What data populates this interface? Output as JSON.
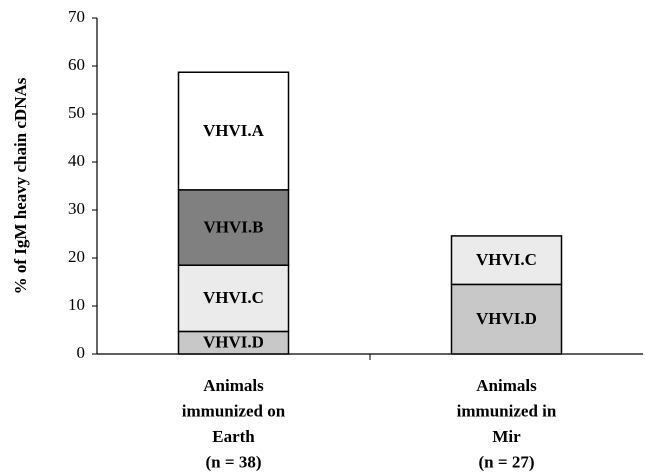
{
  "chart_data": {
    "type": "stacked_bar",
    "y_label": "% of IgM heavy chain cDNAs",
    "categories": [
      [
        "Animals",
        "immunized on",
        "Earth",
        "(n = 38)"
      ],
      [
        "Animals",
        "immunized in",
        "Mir",
        "(n = 27)"
      ]
    ],
    "series": [
      {
        "name": "VHVI.D",
        "color": "#c8c8c8",
        "values": [
          4.7,
          14.5
        ]
      },
      {
        "name": "VHVI.C",
        "color": "#ebebeb",
        "values": [
          13.8,
          10.1
        ]
      },
      {
        "name": "VHVI.B",
        "color": "#808080",
        "values": [
          15.7,
          null
        ]
      },
      {
        "name": "VHVI.A",
        "color": "#ffffff",
        "values": [
          24.5,
          null
        ]
      }
    ],
    "ylim": [
      0,
      70
    ],
    "yticks": [
      0,
      10,
      20,
      30,
      40,
      50,
      60,
      70
    ]
  }
}
